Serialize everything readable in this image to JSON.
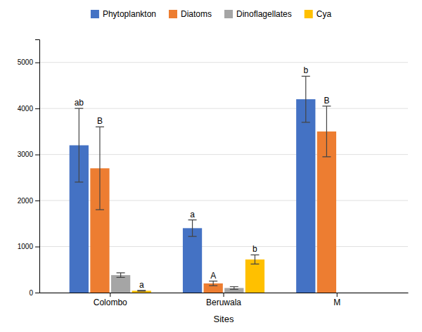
{
  "chart_data": {
    "type": "bar",
    "x_label": "Sites",
    "categories": [
      "Colombo",
      "Beruwala",
      "M"
    ],
    "series": [
      {
        "name": "Phytoplankton",
        "color": "#4472C4",
        "values": [
          3200,
          1400,
          4200
        ],
        "errors": [
          800,
          180,
          500
        ],
        "labels": [
          "ab",
          "a",
          "b"
        ]
      },
      {
        "name": "Diatoms",
        "color": "#ED7D31",
        "values": [
          2700,
          200,
          3500
        ],
        "errors": [
          900,
          50,
          550
        ],
        "labels": [
          "B",
          "A",
          "B"
        ]
      },
      {
        "name": "Dinoflagellates",
        "color": "#A5A5A5",
        "values": [
          380,
          100,
          0
        ],
        "errors": [
          50,
          30,
          0
        ],
        "labels": [
          null,
          null,
          null
        ]
      },
      {
        "name": "Cya",
        "color": "#FFC000",
        "values": [
          40,
          720,
          0
        ],
        "errors": [
          8,
          100,
          0
        ],
        "labels": [
          "a",
          "b",
          null
        ]
      }
    ],
    "ylim": [
      0,
      5500
    ],
    "yticks": [
      0,
      1000,
      2000,
      3000,
      4000,
      5000
    ],
    "grid": true,
    "legend": "top"
  }
}
